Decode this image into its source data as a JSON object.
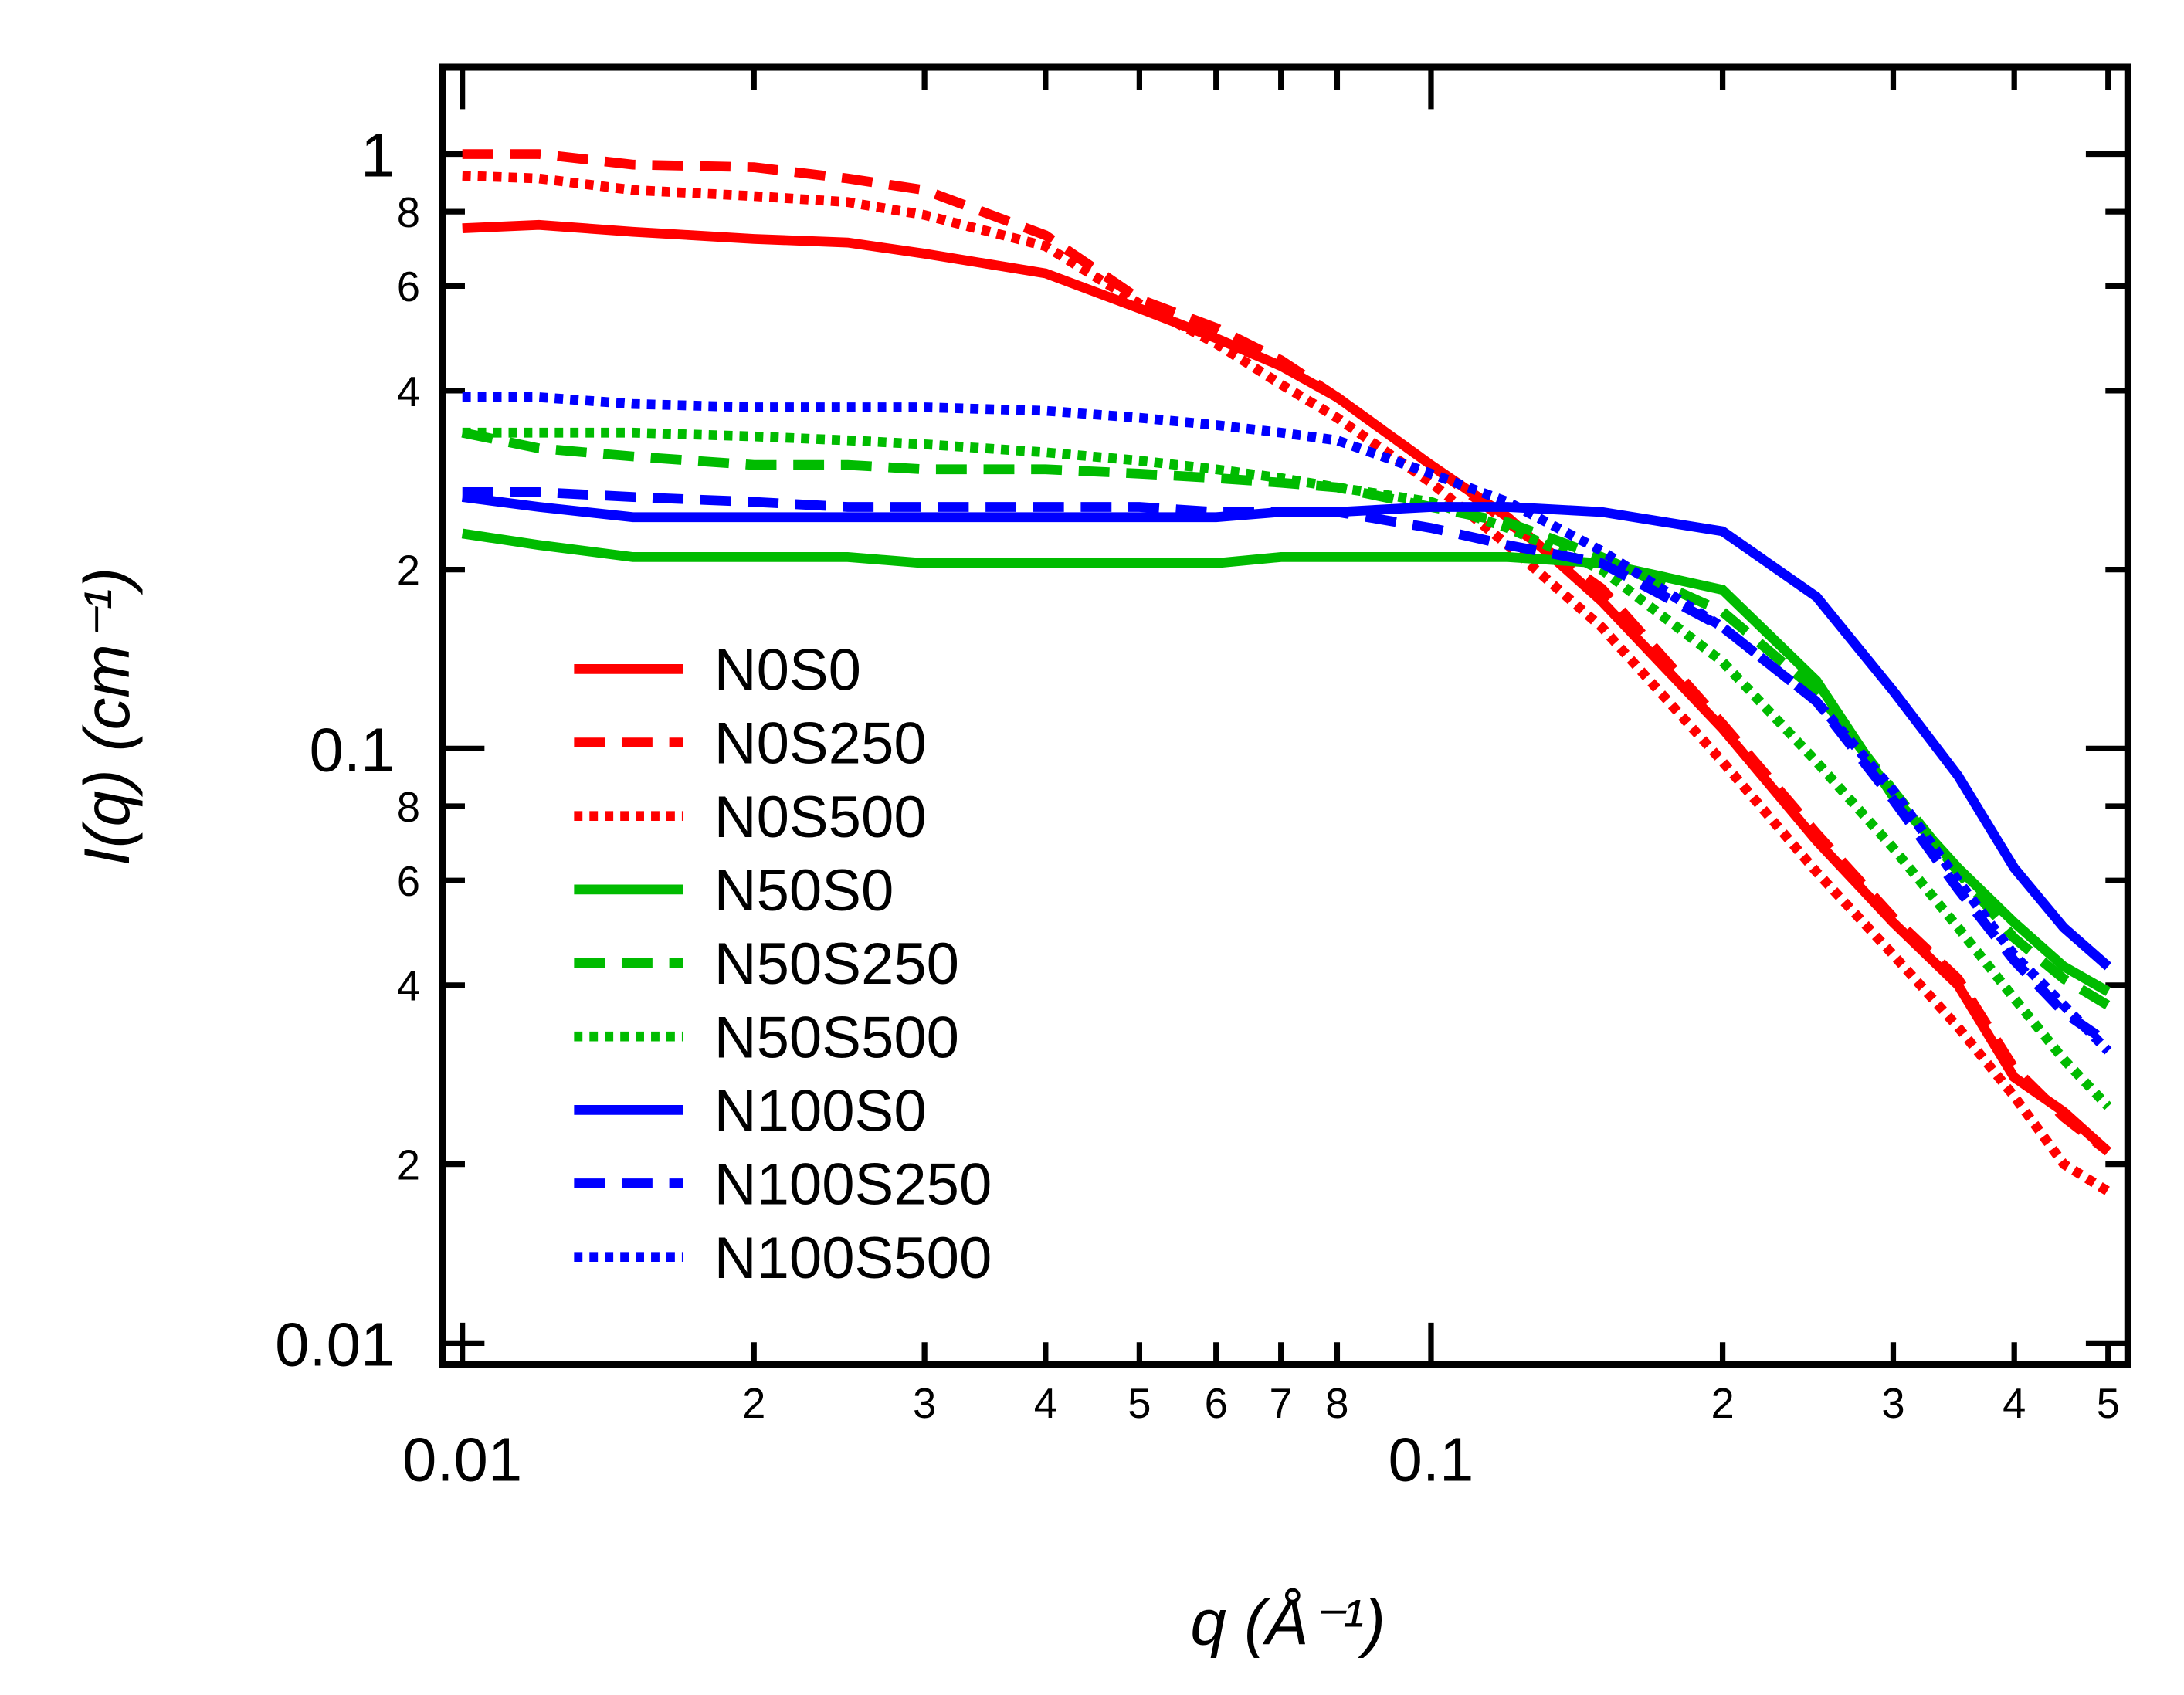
{
  "chart_data": {
    "type": "line",
    "x_label": "q (Å⁻¹)",
    "y_label": "I(q) (cm⁻¹)",
    "x_scale": "log",
    "y_scale": "log",
    "xlim": [
      0.00954,
      0.524
    ],
    "ylim": [
      0.0092,
      1.4
    ],
    "xticks": [
      0.01,
      {
        "value": 0.02,
        "label": "2"
      },
      {
        "value": 0.03,
        "label": "3"
      },
      {
        "value": 0.04,
        "label": "4"
      },
      {
        "value": 0.05,
        "label": "5"
      },
      {
        "value": 0.06,
        "label": "6"
      },
      {
        "value": 0.07,
        "label": "7"
      },
      {
        "value": 0.08,
        "label": "8"
      },
      0.1,
      {
        "value": 0.2,
        "label": "2"
      },
      {
        "value": 0.3,
        "label": "3"
      },
      {
        "value": 0.4,
        "label": "4"
      },
      {
        "value": 0.5,
        "label": "5"
      }
    ],
    "yticks": [
      0.01,
      {
        "value": 0.02,
        "label": "2"
      },
      {
        "value": 0.04,
        "label": "4"
      },
      {
        "value": 0.06,
        "label": "6"
      },
      {
        "value": 0.08,
        "label": "8"
      },
      0.1,
      {
        "value": 0.2,
        "label": "2"
      },
      {
        "value": 0.4,
        "label": "4"
      },
      {
        "value": 0.6,
        "label": "6"
      },
      {
        "value": 0.8,
        "label": "8"
      },
      1
    ],
    "legend": "lower-left",
    "x": [
      0.01,
      0.012,
      0.015,
      0.02,
      0.025,
      0.03,
      0.04,
      0.05,
      0.06,
      0.07,
      0.08,
      0.1,
      0.12,
      0.15,
      0.2,
      0.25,
      0.3,
      0.35,
      0.4,
      0.45,
      0.5
    ],
    "series": [
      {
        "name": "N0S0",
        "color": "#ff0000",
        "dash": "solid",
        "values": [
          0.75,
          0.76,
          0.74,
          0.72,
          0.71,
          0.68,
          0.63,
          0.55,
          0.49,
          0.44,
          0.39,
          0.3,
          0.245,
          0.177,
          0.108,
          0.07,
          0.051,
          0.04,
          0.028,
          0.0245,
          0.021
        ]
      },
      {
        "name": "N0S250",
        "color": "#ff0000",
        "dash": "dashed",
        "values": [
          1.0,
          1.0,
          0.96,
          0.95,
          0.91,
          0.87,
          0.73,
          0.57,
          0.51,
          0.45,
          0.39,
          0.3,
          0.24,
          0.186,
          0.11,
          0.072,
          0.052,
          0.041,
          0.029,
          0.024,
          0.021
        ]
      },
      {
        "name": "N0S500",
        "color": "#ff0000",
        "dash": "dotted",
        "values": [
          0.92,
          0.91,
          0.87,
          0.85,
          0.83,
          0.79,
          0.7,
          0.56,
          0.48,
          0.41,
          0.36,
          0.28,
          0.22,
          0.16,
          0.095,
          0.062,
          0.045,
          0.034,
          0.026,
          0.02,
          0.018
        ]
      },
      {
        "name": "N50S0",
        "color": "#00bb00",
        "dash": "solid",
        "values": [
          0.23,
          0.22,
          0.21,
          0.21,
          0.21,
          0.205,
          0.205,
          0.205,
          0.205,
          0.21,
          0.21,
          0.21,
          0.21,
          0.205,
          0.185,
          0.13,
          0.083,
          0.063,
          0.051,
          0.043,
          0.039
        ]
      },
      {
        "name": "N50S250",
        "color": "#00bb00",
        "dash": "dashed",
        "values": [
          0.34,
          0.32,
          0.31,
          0.3,
          0.3,
          0.295,
          0.295,
          0.29,
          0.285,
          0.28,
          0.275,
          0.255,
          0.24,
          0.21,
          0.17,
          0.125,
          0.085,
          0.062,
          0.048,
          0.041,
          0.037
        ]
      },
      {
        "name": "N50S500",
        "color": "#00bb00",
        "dash": "dotted",
        "values": [
          0.34,
          0.34,
          0.34,
          0.335,
          0.33,
          0.325,
          0.315,
          0.305,
          0.295,
          0.285,
          0.275,
          0.26,
          0.235,
          0.2,
          0.14,
          0.095,
          0.068,
          0.05,
          0.038,
          0.03,
          0.025
        ]
      },
      {
        "name": "N100S0",
        "color": "#0000ff",
        "dash": "solid",
        "values": [
          0.265,
          0.255,
          0.245,
          0.245,
          0.245,
          0.245,
          0.245,
          0.245,
          0.245,
          0.25,
          0.25,
          0.255,
          0.255,
          0.25,
          0.232,
          0.18,
          0.125,
          0.09,
          0.063,
          0.05,
          0.043
        ]
      },
      {
        "name": "N100S250",
        "color": "#0000ff",
        "dash": "dashed",
        "values": [
          0.27,
          0.27,
          0.265,
          0.26,
          0.255,
          0.255,
          0.255,
          0.255,
          0.25,
          0.25,
          0.25,
          0.235,
          0.22,
          0.205,
          0.16,
          0.12,
          0.082,
          0.058,
          0.044,
          0.036,
          0.032
        ]
      },
      {
        "name": "N100S500",
        "color": "#0000ff",
        "dash": "dotted",
        "values": [
          0.39,
          0.39,
          0.38,
          0.375,
          0.375,
          0.375,
          0.37,
          0.36,
          0.35,
          0.34,
          0.33,
          0.29,
          0.26,
          0.215,
          0.16,
          0.12,
          0.085,
          0.06,
          0.045,
          0.037,
          0.031
        ]
      }
    ]
  }
}
